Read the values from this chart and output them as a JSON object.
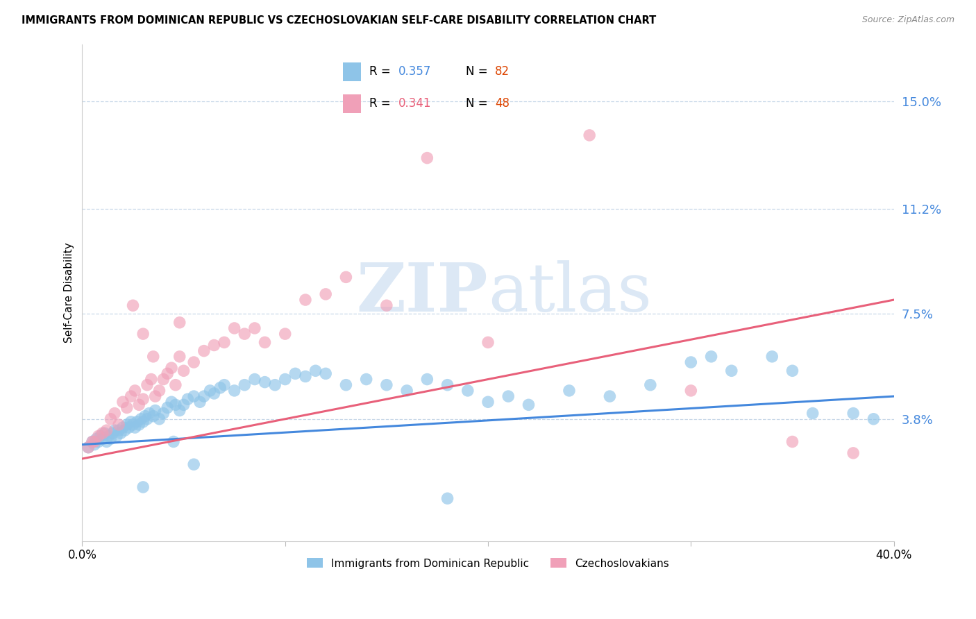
{
  "title": "IMMIGRANTS FROM DOMINICAN REPUBLIC VS CZECHOSLOVAKIAN SELF-CARE DISABILITY CORRELATION CHART",
  "source": "Source: ZipAtlas.com",
  "ylabel": "Self-Care Disability",
  "yticks": [
    0.0,
    0.038,
    0.075,
    0.112,
    0.15
  ],
  "ytick_labels": [
    "",
    "3.8%",
    "7.5%",
    "11.2%",
    "15.0%"
  ],
  "xlim": [
    0.0,
    0.4
  ],
  "ylim": [
    -0.005,
    0.17
  ],
  "legend_label1": "Immigrants from Dominican Republic",
  "legend_label2": "Czechoslovakians",
  "color_blue": "#8ec4e8",
  "color_pink": "#f0a0b8",
  "line_blue": "#4488dd",
  "line_pink": "#e8607a",
  "watermark_zip": "ZIP",
  "watermark_atlas": "atlas",
  "watermark_color": "#dce8f5",
  "blue_line_y_start": 0.029,
  "blue_line_y_end": 0.046,
  "pink_line_y_start": 0.024,
  "pink_line_y_end": 0.08,
  "blue_points_x": [
    0.003,
    0.005,
    0.006,
    0.007,
    0.008,
    0.009,
    0.01,
    0.011,
    0.012,
    0.013,
    0.014,
    0.015,
    0.016,
    0.017,
    0.018,
    0.019,
    0.02,
    0.021,
    0.022,
    0.023,
    0.024,
    0.025,
    0.026,
    0.027,
    0.028,
    0.029,
    0.03,
    0.031,
    0.032,
    0.033,
    0.035,
    0.036,
    0.038,
    0.04,
    0.042,
    0.044,
    0.046,
    0.048,
    0.05,
    0.052,
    0.055,
    0.058,
    0.06,
    0.063,
    0.065,
    0.068,
    0.07,
    0.075,
    0.08,
    0.085,
    0.09,
    0.095,
    0.1,
    0.105,
    0.11,
    0.115,
    0.12,
    0.13,
    0.14,
    0.15,
    0.16,
    0.17,
    0.18,
    0.19,
    0.2,
    0.21,
    0.22,
    0.24,
    0.26,
    0.28,
    0.3,
    0.31,
    0.32,
    0.34,
    0.35,
    0.36,
    0.38,
    0.39,
    0.03,
    0.045,
    0.055,
    0.18
  ],
  "blue_points_y": [
    0.028,
    0.03,
    0.029,
    0.031,
    0.03,
    0.032,
    0.031,
    0.033,
    0.03,
    0.032,
    0.031,
    0.033,
    0.034,
    0.032,
    0.034,
    0.033,
    0.035,
    0.034,
    0.036,
    0.035,
    0.037,
    0.036,
    0.035,
    0.037,
    0.036,
    0.038,
    0.037,
    0.039,
    0.038,
    0.04,
    0.039,
    0.041,
    0.038,
    0.04,
    0.042,
    0.044,
    0.043,
    0.041,
    0.043,
    0.045,
    0.046,
    0.044,
    0.046,
    0.048,
    0.047,
    0.049,
    0.05,
    0.048,
    0.05,
    0.052,
    0.051,
    0.05,
    0.052,
    0.054,
    0.053,
    0.055,
    0.054,
    0.05,
    0.052,
    0.05,
    0.048,
    0.052,
    0.05,
    0.048,
    0.044,
    0.046,
    0.043,
    0.048,
    0.046,
    0.05,
    0.058,
    0.06,
    0.055,
    0.06,
    0.055,
    0.04,
    0.04,
    0.038,
    0.014,
    0.03,
    0.022,
    0.01
  ],
  "pink_points_x": [
    0.003,
    0.005,
    0.006,
    0.008,
    0.01,
    0.012,
    0.014,
    0.016,
    0.018,
    0.02,
    0.022,
    0.024,
    0.026,
    0.028,
    0.03,
    0.032,
    0.034,
    0.036,
    0.038,
    0.04,
    0.042,
    0.044,
    0.046,
    0.048,
    0.05,
    0.055,
    0.06,
    0.065,
    0.07,
    0.075,
    0.08,
    0.085,
    0.09,
    0.1,
    0.11,
    0.12,
    0.13,
    0.15,
    0.17,
    0.2,
    0.25,
    0.3,
    0.35,
    0.38,
    0.048,
    0.03,
    0.025,
    0.035
  ],
  "pink_points_y": [
    0.028,
    0.03,
    0.03,
    0.032,
    0.033,
    0.034,
    0.038,
    0.04,
    0.036,
    0.044,
    0.042,
    0.046,
    0.048,
    0.043,
    0.045,
    0.05,
    0.052,
    0.046,
    0.048,
    0.052,
    0.054,
    0.056,
    0.05,
    0.06,
    0.055,
    0.058,
    0.062,
    0.064,
    0.065,
    0.07,
    0.068,
    0.07,
    0.065,
    0.068,
    0.08,
    0.082,
    0.088,
    0.078,
    0.13,
    0.065,
    0.138,
    0.048,
    0.03,
    0.026,
    0.072,
    0.068,
    0.078,
    0.06
  ]
}
